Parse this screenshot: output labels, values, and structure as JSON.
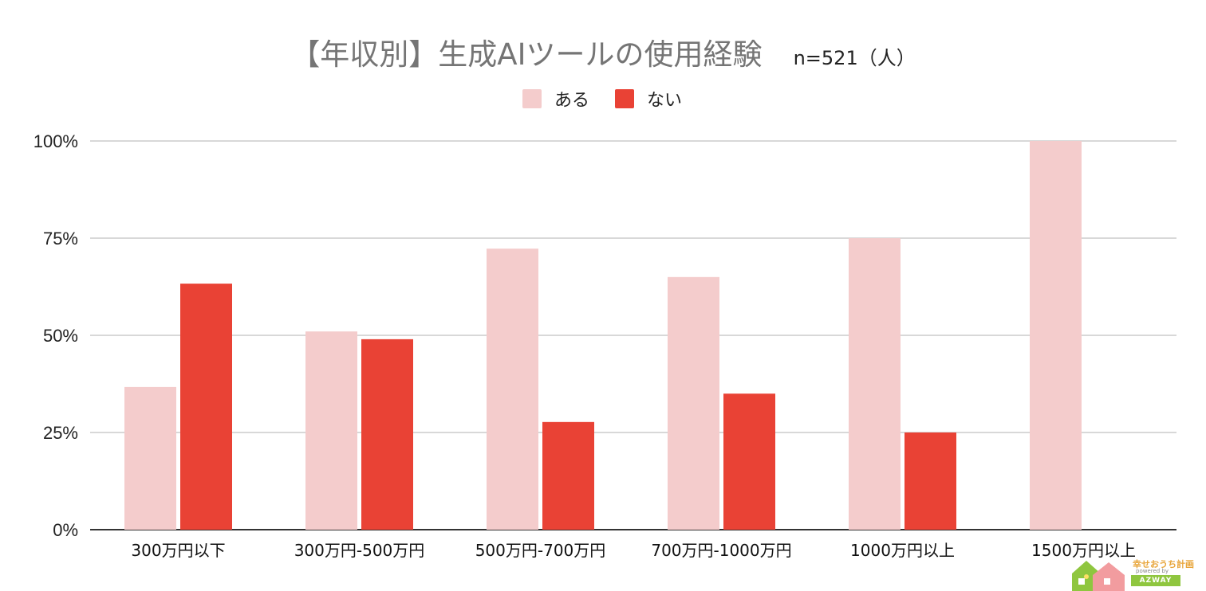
{
  "title": "【年収別】生成AIツールの使用経験",
  "subtitle": "n=521（人）",
  "legend": [
    {
      "label": "ある",
      "color": "#f4cccc"
    },
    {
      "label": "ない",
      "color": "#e94235"
    }
  ],
  "chart_data": {
    "type": "bar",
    "title": "【年収別】生成AIツールの使用経験",
    "subtitle": "n=521（人）",
    "categories": [
      "300万円以下",
      "300万円-500万円",
      "500万円-700万円",
      "700万円-1000万円",
      "1000万円以上",
      "1500万円以上"
    ],
    "series": [
      {
        "name": "ある",
        "color": "#f4cccc",
        "values": [
          36.7,
          51.0,
          72.3,
          65.0,
          75.0,
          100.0
        ]
      },
      {
        "name": "ない",
        "color": "#e94235",
        "values": [
          63.3,
          49.0,
          27.7,
          35.0,
          25.0,
          0
        ]
      }
    ],
    "ylim": [
      0,
      100
    ],
    "yticks": [
      "0%",
      "25%",
      "50%",
      "75%",
      "100%"
    ],
    "ytick_values": [
      0,
      25,
      50,
      75,
      100
    ],
    "grid": true,
    "legend_position": "top-center"
  },
  "logo": {
    "brand": "幸せおうち計画",
    "powered": "powered by",
    "company": "AZWAY"
  }
}
